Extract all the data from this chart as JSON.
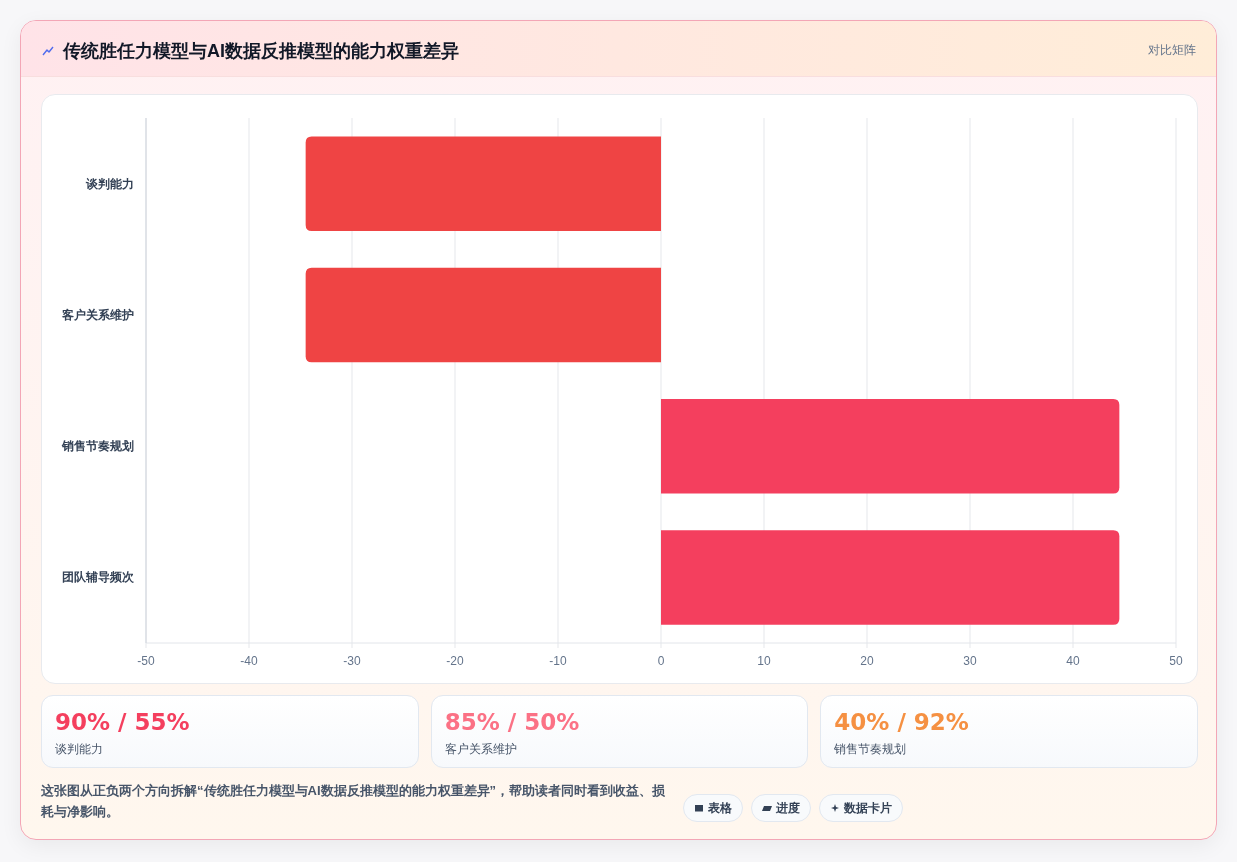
{
  "chart_data": [
    {
      "type": "bar",
      "title": "传统胜任力模型与AI数据反推模型的能力权重差异",
      "annotations": [
        "对比矩阵"
      ],
      "orientation": "horizontal",
      "categories": [
        "谈判能力",
        "客户关系维护",
        "销售节奏规划",
        "团队辅导频次"
      ],
      "values": [
        -34.5,
        -34.5,
        44.5,
        44.5
      ],
      "colors": [
        "#ef4444",
        "#ef4444",
        "#f43f5e",
        "#f43f5e"
      ],
      "xlim": [
        -50,
        50
      ],
      "xticks": [
        -50,
        -40,
        -30,
        -20,
        -10,
        0,
        10,
        20,
        30,
        40,
        50
      ],
      "grid": "x"
    },
    {
      "type": "other",
      "color": "#f43f5e",
      "annotations": [
        "90% / 55%",
        "谈判能力"
      ]
    },
    {
      "type": "other",
      "color": "#fb7185",
      "annotations": [
        "85% / 50%",
        "客户关系维护"
      ]
    },
    {
      "type": "other",
      "color": "#f59042",
      "annotations": [
        "40% / 92%",
        "销售节奏规划"
      ]
    },
    {
      "type": "other",
      "annotations": [
        "这张图从正负两个方向拆解“传统胜任力模型与AI数据反推模型的能力权重差异”，帮助读者同时看到收益、损耗与净影响。",
        "表格",
        "进度",
        "数据卡片"
      ]
    }
  ]
}
